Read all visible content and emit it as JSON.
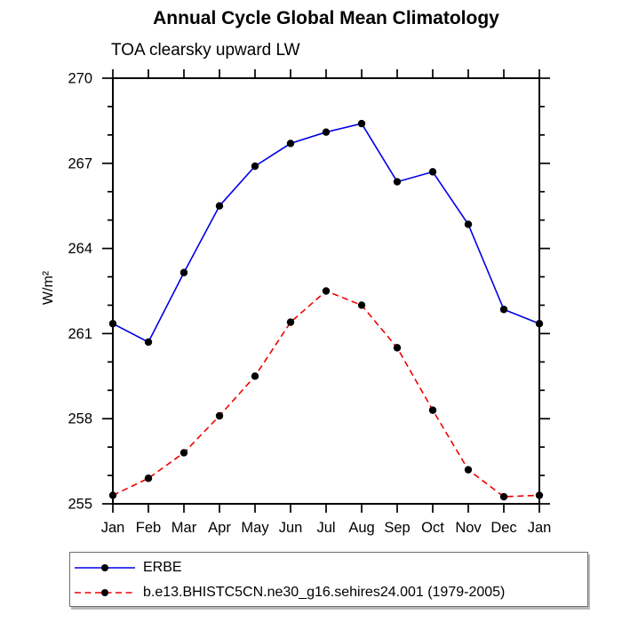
{
  "chart_data": {
    "type": "line",
    "title": "Annual Cycle Global Mean Climatology",
    "subtitle": "TOA clearsky upward LW",
    "ylabel": "W/m²",
    "xlabel": "",
    "x_categories": [
      "Jan",
      "Feb",
      "Mar",
      "Apr",
      "May",
      "Jun",
      "Jul",
      "Aug",
      "Sep",
      "Oct",
      "Nov",
      "Dec",
      "Jan"
    ],
    "ylim": [
      255,
      270
    ],
    "y_major_ticks": [
      255,
      258,
      261,
      264,
      267,
      270
    ],
    "y_minor_step": 1,
    "grid": false,
    "legend_position": "bottom-outside-box",
    "axis_color": "#000000",
    "marker_color": "#000000",
    "series": [
      {
        "name": "ERBE",
        "line_color": "#0000e8",
        "line_style": "solid",
        "marker": "filled-circle",
        "values": [
          261.35,
          260.7,
          263.15,
          265.5,
          266.9,
          267.7,
          268.1,
          268.4,
          266.35,
          266.7,
          264.85,
          261.85,
          261.35
        ]
      },
      {
        "name": "b.e13.BHISTC5CN.ne30_g16.sehires24.001 (1979-2005)",
        "line_color": "#ee0000",
        "line_style": "dashed",
        "marker": "filled-circle",
        "values": [
          255.3,
          255.9,
          256.8,
          258.1,
          259.5,
          261.4,
          262.5,
          262.0,
          260.5,
          258.3,
          256.2,
          255.25,
          255.3
        ]
      }
    ]
  }
}
